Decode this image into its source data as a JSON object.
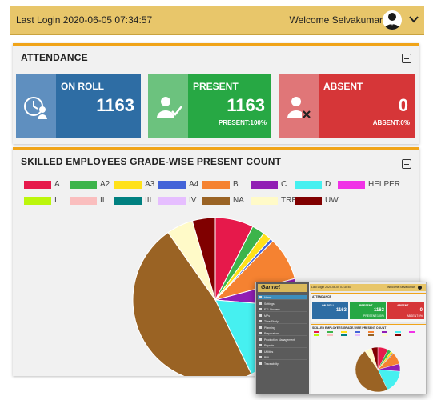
{
  "header": {
    "last_login": "Last Login 2020-06-05 07:34:57",
    "welcome": "Welcome Selvakumar",
    "avatar_icon": "user-avatar-icon",
    "menu_icon": "chevron-down-icon"
  },
  "attendance": {
    "title": "ATTENDANCE",
    "cards": [
      {
        "label": "ON ROLL",
        "value": "1163",
        "sub": "",
        "color": "#2e6da4",
        "icon_bg": "#5f8fbf",
        "icon": "clock-user-icon"
      },
      {
        "label": "PRESENT",
        "value": "1163",
        "sub": "PRESENT:100%",
        "color": "#27a844",
        "icon_bg": "#6cc27e",
        "icon": "user-check-icon"
      },
      {
        "label": "ABSENT",
        "value": "0",
        "sub": "ABSENT:0%",
        "color": "#d63638",
        "icon_bg": "#e07678",
        "icon": "user-x-icon"
      }
    ]
  },
  "grade_chart": {
    "title": "SKILLED EMPLOYEES GRADE-WISE PRESENT COUNT"
  },
  "chart_data": {
    "type": "pie",
    "title": "SKILLED EMPLOYEES GRADE-WISE PRESENT COUNT",
    "legend_position": "top",
    "labels": [
      "A",
      "A2",
      "A3",
      "A4",
      "B",
      "C",
      "D",
      "HELPER",
      "I",
      "II",
      "III",
      "IV",
      "NA",
      "TRE",
      "UW"
    ],
    "colors": [
      "#e6194b",
      "#3cb44b",
      "#ffe119",
      "#4363d8",
      "#f58231",
      "#911eb4",
      "#46f0f0",
      "#f032e6",
      "#bcf60c",
      "#fabebe",
      "#008080",
      "#e6beff",
      "#9a6324",
      "#fffac8",
      "#800000"
    ],
    "values": [
      7.5,
      2.5,
      1.7,
      0.6,
      8.5,
      5.5,
      16.5,
      0,
      0,
      0,
      0,
      0,
      47.5,
      5.2,
      4.5
    ]
  },
  "mini_preview": {
    "logo": "Gannet",
    "menu": [
      "Home",
      "Settings",
      "ETL Process",
      "MPs",
      "Time Study",
      "Planning",
      "Preparation",
      "Production Management",
      "Reports",
      "Utilities",
      "BUI",
      "Traceability"
    ],
    "last_login": "Last Login 2020-06-05 07:34:57",
    "welcome": "Welcome Selvakumar",
    "attendance_title": "ATTENDANCE",
    "cards": [
      {
        "label": "ON ROLL",
        "value": "1163",
        "sub": "",
        "color": "#2e6da4"
      },
      {
        "label": "PRESENT",
        "value": "1163",
        "sub": "PRESENT:100%",
        "color": "#27a844"
      },
      {
        "label": "ABSENT",
        "value": "0",
        "sub": "ABSENT:0%",
        "color": "#d63638"
      }
    ],
    "chart_title": "SKILLED EMPLOYEES GRADE-WISE PRESENT COUNT"
  }
}
